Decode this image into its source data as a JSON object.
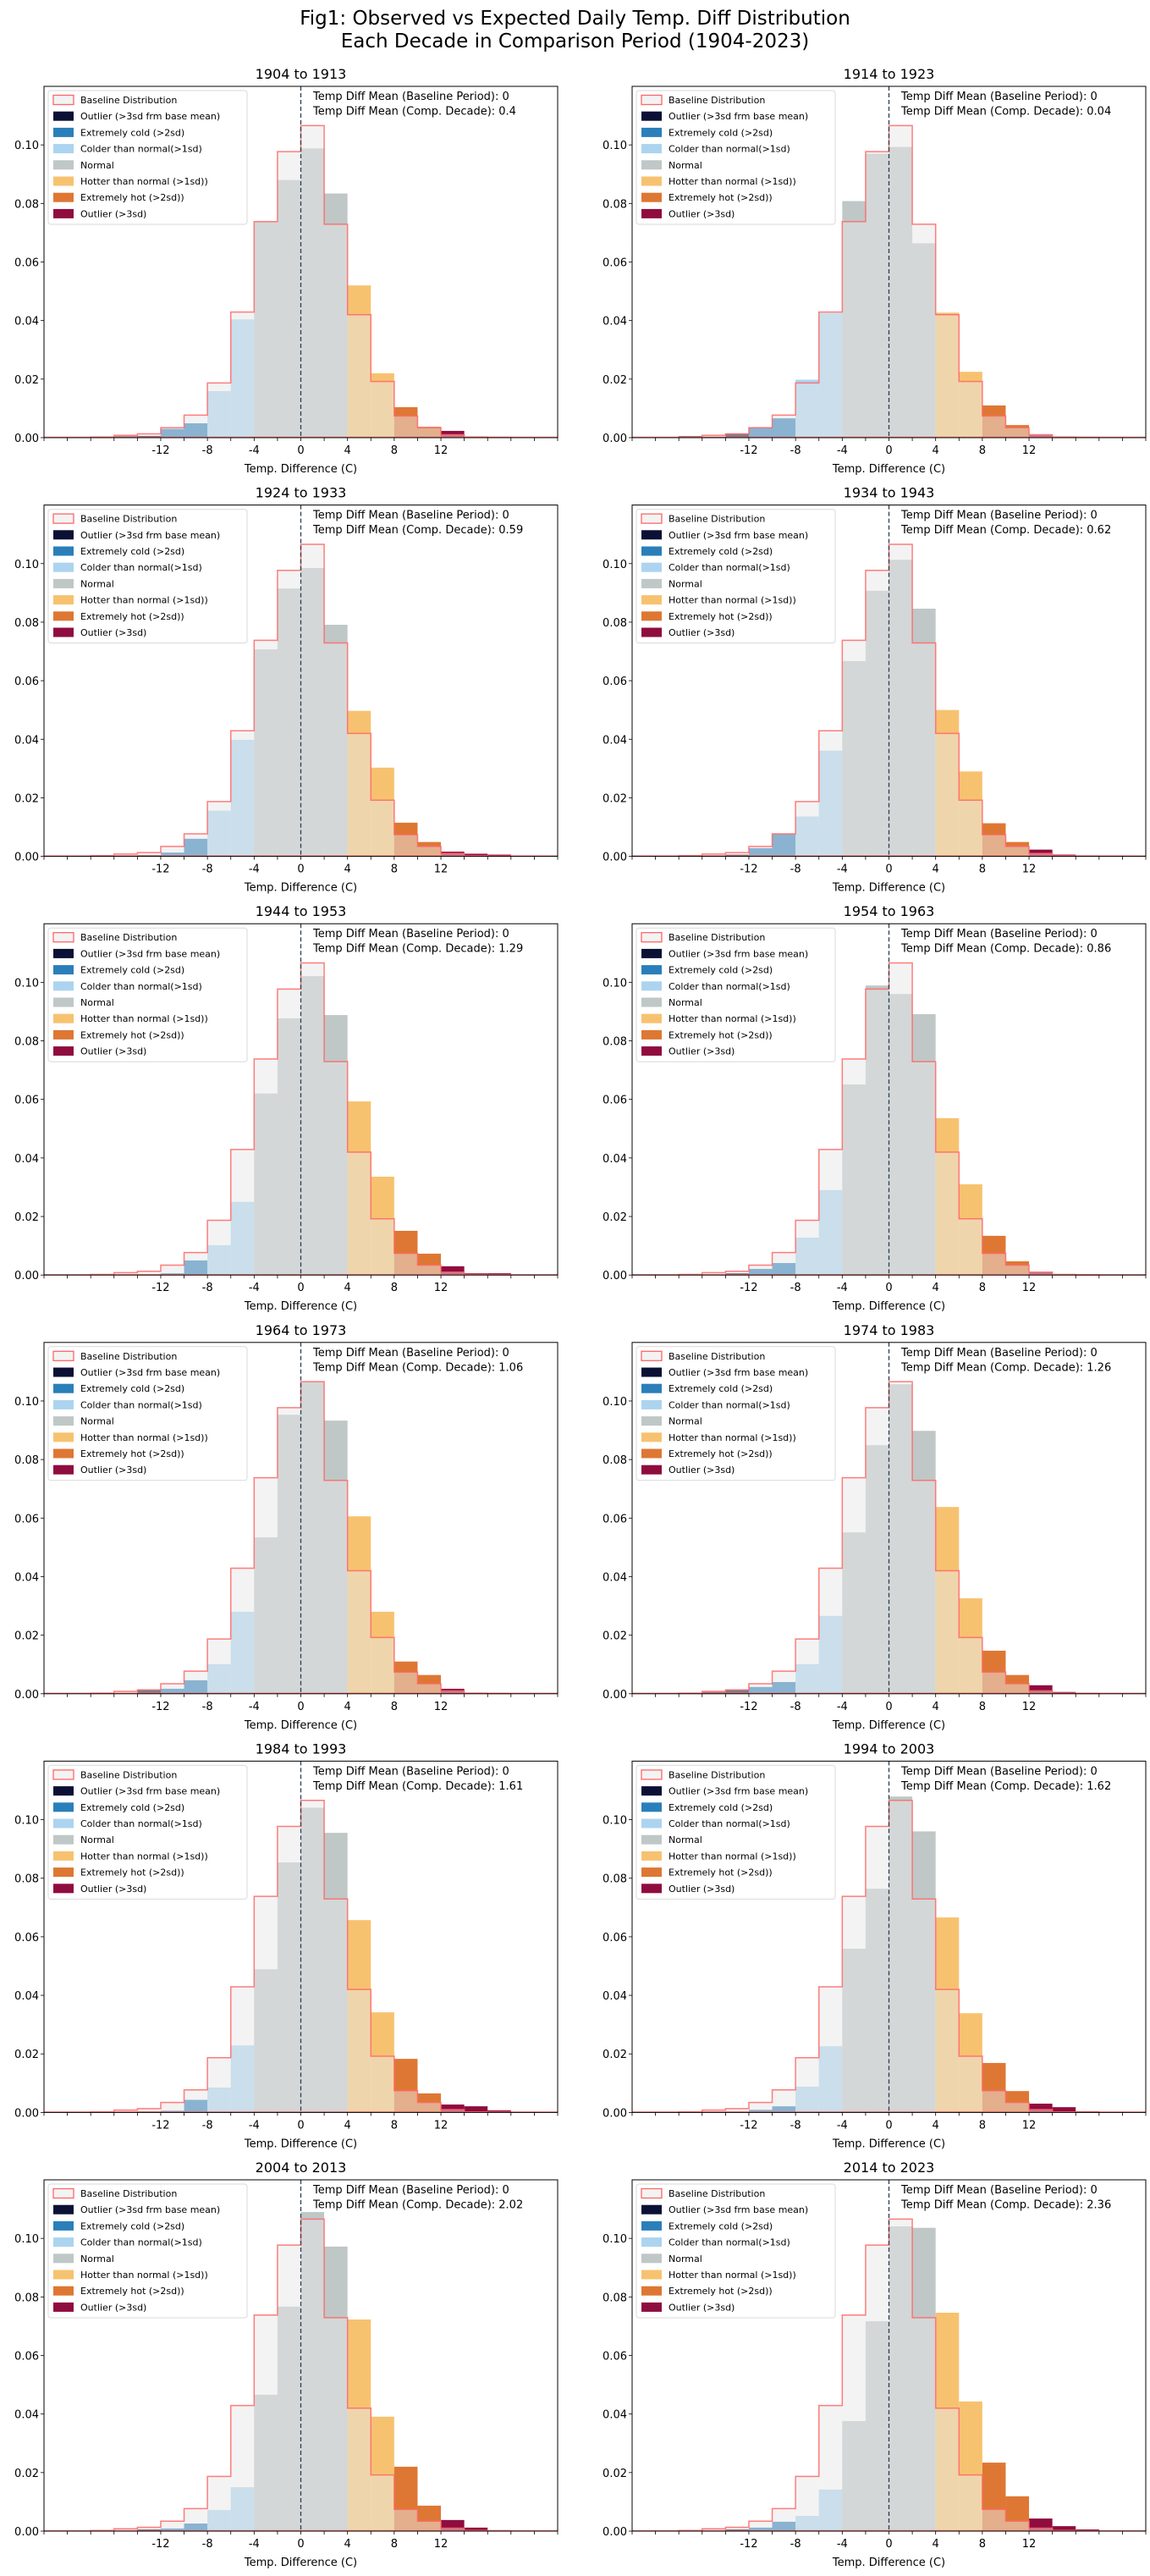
{
  "chart_data": {
    "type": "bar",
    "title_lines": [
      "Fig1: Observed vs Expected Daily Temp. Diff Distribution",
      "Each Decade in Comparison Period (1904-2023)"
    ],
    "xlabel": "Temp. Difference (C)",
    "xlim": [
      -22,
      22
    ],
    "ylim": [
      0,
      0.12
    ],
    "xtick_labels": [
      "-12",
      "-8",
      "-4",
      "0",
      "4",
      "8",
      "12"
    ],
    "xtick_values": [
      -12,
      -8,
      -4,
      0,
      4,
      8,
      12
    ],
    "ytick_labels": [
      "0.00",
      "0.02",
      "0.04",
      "0.06",
      "0.08",
      "0.10"
    ],
    "ytick_values": [
      0,
      0.02,
      0.04,
      0.06,
      0.08,
      0.1
    ],
    "bin_start": -18,
    "bin_width": 2,
    "reference_line_x": 0,
    "legend": {
      "placement": "upper-left",
      "entries": [
        {
          "label": "Baseline Distribution",
          "key": "baseline"
        },
        {
          "label": "Outlier (>3sd frm base mean)",
          "key": "outlier_cold"
        },
        {
          "label": "Extremely cold (>2sd)",
          "key": "extreme_cold"
        },
        {
          "label": "Colder than normal(>1sd)",
          "key": "colder"
        },
        {
          "label": "Normal",
          "key": "normal"
        },
        {
          "label": "Hotter than normal (>1sd))",
          "key": "hotter"
        },
        {
          "label": "Extremely hot (>2sd))",
          "key": "extreme_hot"
        },
        {
          "label": "Outlier (>3sd)",
          "key": "outlier_hot"
        }
      ]
    },
    "category_bounds": {
      "outlier_cold": [
        -99,
        -12
      ],
      "extreme_cold": [
        -12,
        -8
      ],
      "colder": [
        -8,
        -4
      ],
      "normal": [
        -4,
        4
      ],
      "hotter": [
        4,
        8
      ],
      "extreme_hot": [
        8,
        12
      ],
      "outlier_hot": [
        12,
        99
      ]
    },
    "colors": {
      "outlier_cold": "#0b1035",
      "extreme_cold": "#2a7fba",
      "colder": "#acd4ef",
      "normal": "#bfc7c7",
      "hotter": "#f7c270",
      "extreme_hot": "#de7733",
      "outlier_hot": "#8f0c3f",
      "baseline_edge": "#ff6666",
      "baseline_fill": "#e8e8e8",
      "ref_line": "#2c3e50"
    },
    "baseline": [
      0.0002,
      0.0008,
      0.0013,
      0.0034,
      0.0077,
      0.0187,
      0.0429,
      0.0738,
      0.0977,
      0.1066,
      0.0729,
      0.042,
      0.0192,
      0.0074,
      0.0034,
      0.001,
      0.0002,
      0.0001
    ],
    "baseline_mean_label": "Temp Diff Mean (Baseline Period): 0",
    "panels": [
      {
        "title": "1904 to 1913",
        "mean_label": "Temp Diff Mean (Comp. Decade): 0.4",
        "values": [
          0,
          0.0005,
          0.0006,
          0.003,
          0.0049,
          0.0159,
          0.0404,
          0.0736,
          0.088,
          0.0988,
          0.0834,
          0.052,
          0.022,
          0.0104,
          0.0037,
          0.0023,
          0.0003,
          0
        ]
      },
      {
        "title": "1914 to 1923",
        "mean_label": "Temp Diff Mean (Comp. Decade): 0.04",
        "values": [
          0.0005,
          0.0003,
          0.0013,
          0.0034,
          0.0066,
          0.0198,
          0.0426,
          0.0808,
          0.097,
          0.0993,
          0.0664,
          0.0427,
          0.0225,
          0.011,
          0.0043,
          0.0009,
          0,
          0
        ]
      },
      {
        "title": "1924 to 1933",
        "mean_label": "Temp Diff Mean (Comp. Decade): 0.59",
        "values": [
          0.0003,
          0.0003,
          0.0004,
          0.0013,
          0.006,
          0.0156,
          0.0398,
          0.0707,
          0.0915,
          0.0985,
          0.0791,
          0.0497,
          0.0303,
          0.0115,
          0.0049,
          0.0016,
          0.0009,
          0.0006
        ]
      },
      {
        "title": "1934 to 1943",
        "mean_label": "Temp Diff Mean (Comp. Decade): 0.62",
        "values": [
          0.0003,
          0.0003,
          0.0006,
          0.0028,
          0.0076,
          0.0136,
          0.0361,
          0.0667,
          0.0907,
          0.1013,
          0.0846,
          0.05,
          0.029,
          0.0113,
          0.0049,
          0.0023,
          0.0006,
          0
        ]
      },
      {
        "title": "1944 to 1953",
        "mean_label": "Temp Diff Mean (Comp. Decade): 1.29",
        "values": [
          0,
          0,
          0,
          0.0006,
          0.005,
          0.0102,
          0.025,
          0.062,
          0.0877,
          0.1021,
          0.0888,
          0.0593,
          0.0336,
          0.0151,
          0.0073,
          0.003,
          0.0006,
          0.0006
        ]
      },
      {
        "title": "1954 to 1963",
        "mean_label": "Temp Diff Mean (Comp. Decade): 0.86",
        "values": [
          0,
          0,
          0.0006,
          0.0021,
          0.0041,
          0.0128,
          0.029,
          0.0651,
          0.0989,
          0.096,
          0.0891,
          0.0536,
          0.031,
          0.0134,
          0.0047,
          0.0009,
          0,
          0
        ]
      },
      {
        "title": "1964 to 1973",
        "mean_label": "Temp Diff Mean (Comp. Decade): 1.06",
        "values": [
          0,
          0,
          0.0013,
          0.0017,
          0.0046,
          0.0101,
          0.028,
          0.0534,
          0.0953,
          0.1065,
          0.0933,
          0.0606,
          0.028,
          0.011,
          0.0064,
          0.0017,
          0.0003,
          0
        ]
      },
      {
        "title": "1974 to 1983",
        "mean_label": "Temp Diff Mean (Comp. Decade): 1.26",
        "values": [
          0,
          0.0006,
          0.0013,
          0.0023,
          0.004,
          0.0101,
          0.0266,
          0.0551,
          0.0849,
          0.1057,
          0.0898,
          0.0638,
          0.0326,
          0.0147,
          0.0064,
          0.0029,
          0.0006,
          0.0003
        ]
      },
      {
        "title": "1984 to 1993",
        "mean_label": "Temp Diff Mean (Comp. Decade): 1.61",
        "values": [
          0,
          0,
          0.0003,
          0.0006,
          0.0043,
          0.0085,
          0.0229,
          0.0489,
          0.0854,
          0.1041,
          0.0955,
          0.0657,
          0.0342,
          0.0183,
          0.0065,
          0.0027,
          0.0021,
          0.0007
        ]
      },
      {
        "title": "1994 to 2003",
        "mean_label": "Temp Diff Mean (Comp. Decade): 1.62",
        "values": [
          0,
          0.0002,
          0.0002,
          0.0009,
          0.0021,
          0.0088,
          0.0226,
          0.0559,
          0.0764,
          0.1079,
          0.096,
          0.0666,
          0.0339,
          0.0169,
          0.0073,
          0.003,
          0.0018,
          0.0004
        ]
      },
      {
        "title": "2004 to 2013",
        "mean_label": "Temp Diff Mean (Comp. Decade): 2.02",
        "values": [
          0,
          0,
          0.0006,
          0.0009,
          0.0026,
          0.0072,
          0.015,
          0.0466,
          0.0767,
          0.109,
          0.0972,
          0.0723,
          0.0391,
          0.022,
          0.0087,
          0.0038,
          0.0012,
          0.0003
        ]
      },
      {
        "title": "2014 to 2023",
        "mean_label": "Temp Diff Mean (Comp. Decade): 2.36",
        "values": [
          0,
          0.0002,
          0.0006,
          0.0012,
          0.0032,
          0.0052,
          0.0142,
          0.0376,
          0.0717,
          0.1041,
          0.1036,
          0.0746,
          0.0443,
          0.0234,
          0.0119,
          0.0043,
          0.0017,
          0.0006
        ]
      }
    ]
  }
}
